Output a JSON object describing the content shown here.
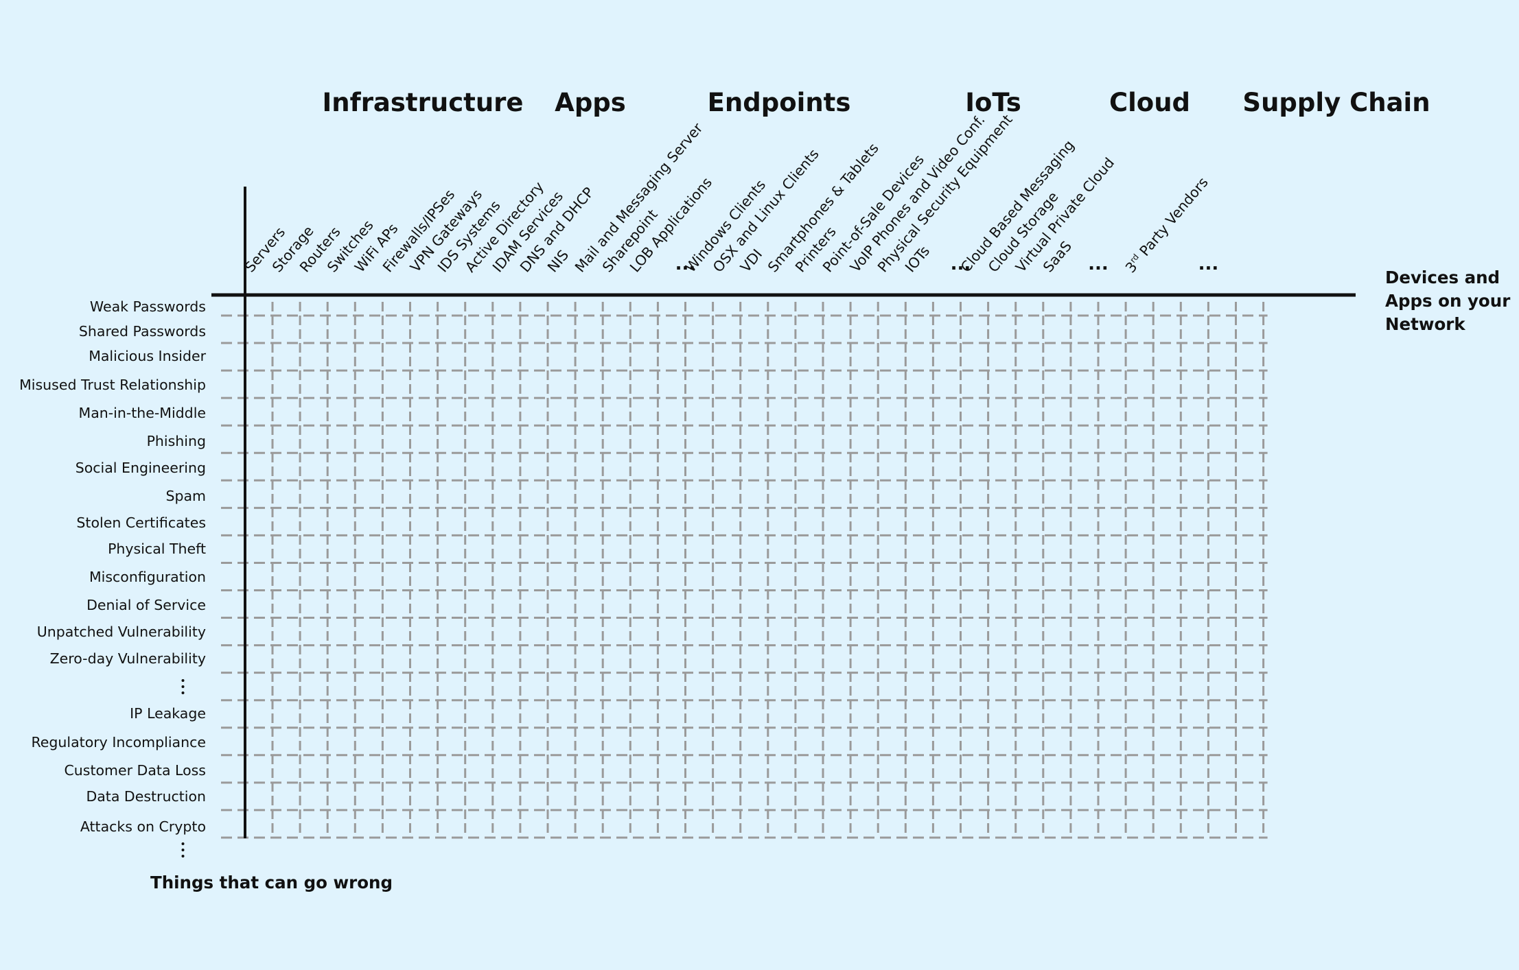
{
  "categories": [
    {
      "label": "Infrastructure"
    },
    {
      "label": "Apps"
    },
    {
      "label": "Endpoints"
    },
    {
      "label": "IoTs"
    },
    {
      "label": "Cloud"
    },
    {
      "label": "Supply Chain"
    }
  ],
  "columns": [
    {
      "label": "Servers"
    },
    {
      "label": "Storage"
    },
    {
      "label": "Routers"
    },
    {
      "label": "Switches"
    },
    {
      "label": "WiFi APs"
    },
    {
      "label": "Firewalls/IPSes"
    },
    {
      "label": "VPN Gateways"
    },
    {
      "label": "IDS Systems"
    },
    {
      "label": "Active Directory"
    },
    {
      "label": "IDAM Services"
    },
    {
      "label": "DNS and DHCP"
    },
    {
      "label": "NIS"
    },
    {
      "label": "Mail and Messaging Server"
    },
    {
      "label": "Sharepoint"
    },
    {
      "label": "LOB Applications"
    },
    {
      "label": "..."
    },
    {
      "label": "Windows Clients"
    },
    {
      "label": "OSX and Linux Clients"
    },
    {
      "label": "VDI"
    },
    {
      "label": "Smartphones & Tablets"
    },
    {
      "label": "Printers"
    },
    {
      "label": "Point-of-Sale Devices"
    },
    {
      "label": "VoIP Phones and Video Conf."
    },
    {
      "label": "Physical Security Equipment"
    },
    {
      "label": "IOTs"
    },
    {
      "label": "..."
    },
    {
      "label": "Cloud Based Messaging"
    },
    {
      "label": "Cloud Storage"
    },
    {
      "label": "Virtual Private Cloud"
    },
    {
      "label": "SaaS"
    },
    {
      "label": "..."
    },
    {
      "label": ""
    },
    {
      "label": "3rd Party Vendors",
      "sup": "rd"
    },
    {
      "label": ""
    },
    {
      "label": "..."
    },
    {
      "label": ""
    },
    {
      "label": ""
    }
  ],
  "rows": [
    "Weak Passwords",
    "Shared Passwords",
    "Malicious Insider",
    "Misused Trust Relationship",
    "Man-in-the-Middle",
    "Phishing",
    "Social Engineering",
    "Spam",
    "Stolen Certificates",
    "Physical Theft",
    "Misconfiguration",
    "Denial of Service",
    "Unpatched Vulnerability",
    "Zero-day Vulnerability",
    "⋮",
    "IP Leakage",
    "Regulatory Incompliance",
    "Customer Data Loss",
    "Data Destruction",
    "Attacks on Crypto"
  ],
  "axis_x_label": "Devices and Apps on your Network",
  "axis_y_label": "Things that can go wrong"
}
